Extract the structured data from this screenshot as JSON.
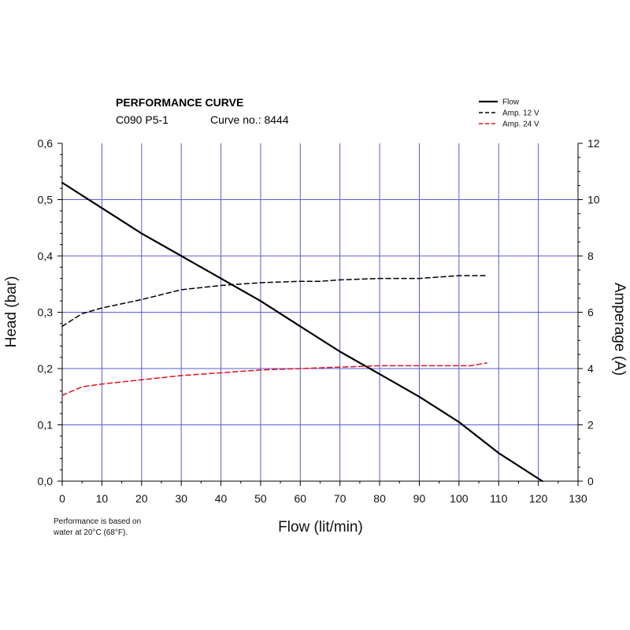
{
  "header": {
    "title": "PERFORMANCE CURVE",
    "model": "C090 P5-1",
    "curve_no": "Curve no.: 8444"
  },
  "footnote": {
    "line1": "Performance is based on",
    "line2": "water at 20°C (68°F)."
  },
  "chart_data": {
    "type": "line",
    "xlabel": "Flow (lit/min)",
    "ylabel": "Head (bar)",
    "y2label": "Amperage (A)",
    "xlim": [
      0,
      130
    ],
    "ylim": [
      0,
      0.6
    ],
    "y2lim": [
      0,
      12
    ],
    "x_ticks": [
      0,
      10,
      20,
      30,
      40,
      50,
      60,
      70,
      80,
      90,
      100,
      110,
      120,
      130
    ],
    "y_ticks": [
      "0,0",
      "0,1",
      "0,2",
      "0,3",
      "0,4",
      "0,5",
      "0,6"
    ],
    "y2_ticks": [
      "0",
      "2",
      "4",
      "6",
      "8",
      "10",
      "12"
    ],
    "grid": true,
    "grid_color": "#5a5ad6",
    "legend_position": "top-right",
    "series": [
      {
        "name": "Flow",
        "axis": "left",
        "color": "#000000",
        "dash": "solid",
        "x": [
          0,
          10,
          20,
          30,
          40,
          50,
          60,
          70,
          80,
          90,
          100,
          110,
          121
        ],
        "y": [
          0.53,
          0.485,
          0.44,
          0.4,
          0.36,
          0.32,
          0.275,
          0.23,
          0.19,
          0.15,
          0.105,
          0.05,
          0.0
        ]
      },
      {
        "name": "Amp. 12 V",
        "axis": "right",
        "color": "#000000",
        "dash": "dashed",
        "x": [
          0,
          5,
          10,
          20,
          30,
          40,
          50,
          60,
          65,
          70,
          80,
          90,
          100,
          107
        ],
        "y": [
          5.5,
          5.95,
          6.15,
          6.45,
          6.8,
          6.95,
          7.05,
          7.1,
          7.1,
          7.15,
          7.2,
          7.2,
          7.3,
          7.3
        ]
      },
      {
        "name": "Amp. 24 V",
        "axis": "right",
        "color": "#e0101e",
        "dash": "dashed",
        "x": [
          0,
          5,
          10,
          20,
          30,
          40,
          50,
          60,
          70,
          80,
          90,
          100,
          103,
          107
        ],
        "y": [
          3.05,
          3.35,
          3.45,
          3.6,
          3.75,
          3.85,
          3.95,
          4.0,
          4.05,
          4.1,
          4.1,
          4.1,
          4.1,
          4.2
        ]
      }
    ]
  }
}
